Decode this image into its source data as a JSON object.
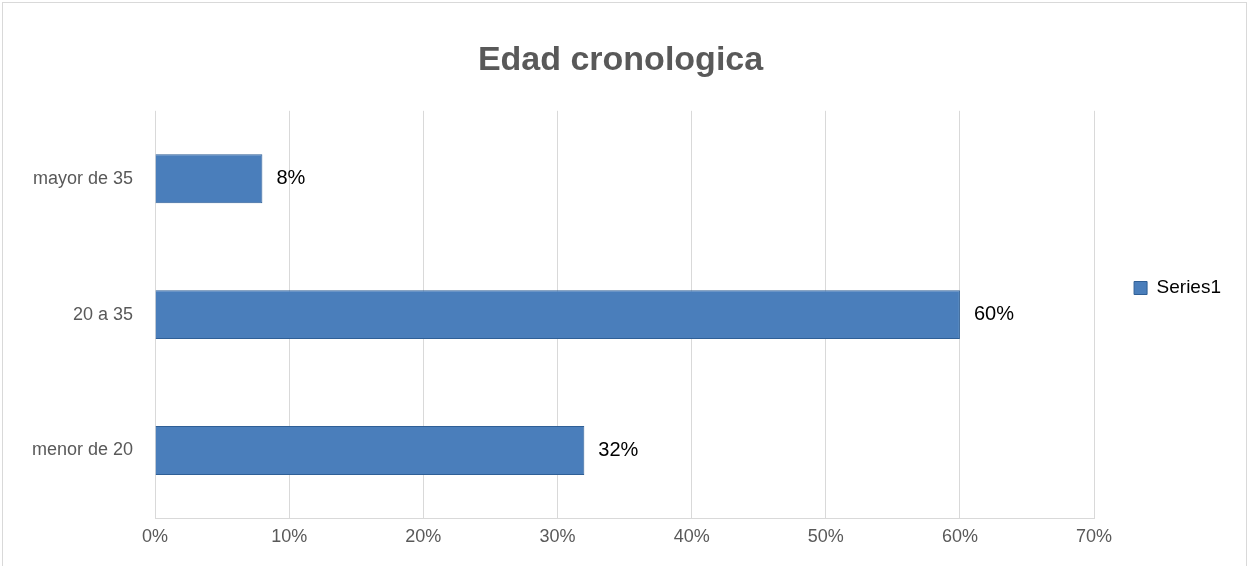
{
  "chart_data": {
    "type": "bar",
    "title": "Edad cronologica",
    "orientation": "horizontal",
    "categories": [
      "mayor de 35",
      "20 a 35",
      "menor de 20"
    ],
    "series": [
      {
        "name": "Series1",
        "color": "#4a7ebb",
        "values": [
          8,
          60,
          32
        ],
        "value_labels": [
          "8%",
          "60%",
          "32%"
        ]
      }
    ],
    "xlim": [
      0,
      70
    ],
    "xticks": [
      {
        "value": 0,
        "label": "0%"
      },
      {
        "value": 10,
        "label": "10%"
      },
      {
        "value": 20,
        "label": "20%"
      },
      {
        "value": 30,
        "label": "30%"
      },
      {
        "value": 40,
        "label": "40%"
      },
      {
        "value": 50,
        "label": "50%"
      },
      {
        "value": 60,
        "label": "60%"
      },
      {
        "value": 70,
        "label": "70%"
      }
    ],
    "grid": "x",
    "legend": "right"
  }
}
